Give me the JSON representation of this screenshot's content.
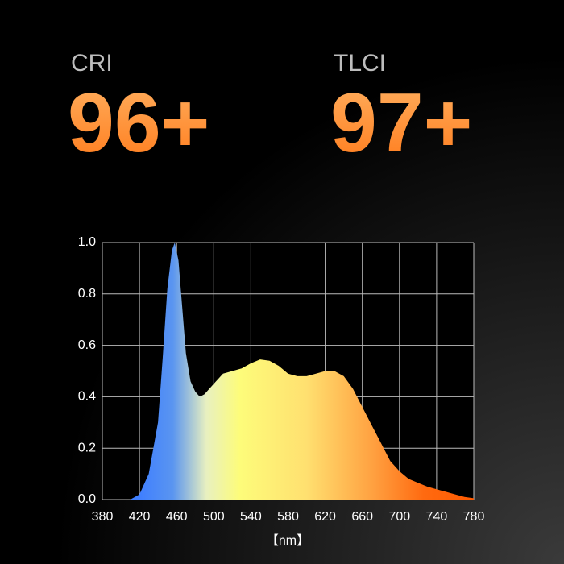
{
  "badges": [
    {
      "label": "CRI",
      "value": "96+"
    },
    {
      "label": "TLCI",
      "value": "97+"
    }
  ],
  "chart_data": {
    "type": "area",
    "xlabel": "【nm】",
    "x": [
      410,
      420,
      430,
      440,
      445,
      450,
      455,
      458,
      462,
      466,
      470,
      475,
      480,
      485,
      490,
      500,
      510,
      520,
      530,
      540,
      550,
      560,
      570,
      580,
      590,
      600,
      610,
      620,
      630,
      640,
      650,
      660,
      670,
      680,
      690,
      700,
      710,
      720,
      730,
      740,
      750,
      760,
      770,
      780
    ],
    "values": [
      0,
      0.02,
      0.1,
      0.3,
      0.55,
      0.82,
      0.97,
      1.0,
      0.93,
      0.75,
      0.57,
      0.46,
      0.42,
      0.4,
      0.41,
      0.45,
      0.49,
      0.5,
      0.51,
      0.53,
      0.545,
      0.54,
      0.52,
      0.49,
      0.48,
      0.48,
      0.49,
      0.5,
      0.5,
      0.48,
      0.43,
      0.36,
      0.29,
      0.22,
      0.15,
      0.11,
      0.08,
      0.065,
      0.05,
      0.04,
      0.03,
      0.02,
      0.01,
      0.005
    ],
    "xlim": [
      380,
      780
    ],
    "ylim": [
      0,
      1
    ],
    "xticks": [
      380,
      420,
      460,
      500,
      540,
      580,
      620,
      660,
      700,
      740,
      780
    ],
    "yticks": [
      {
        "value": 0,
        "label": "0.0"
      },
      0.2,
      0.4,
      0.6,
      0.8,
      {
        "value": 1,
        "label": "1.0"
      }
    ],
    "grid": true
  }
}
